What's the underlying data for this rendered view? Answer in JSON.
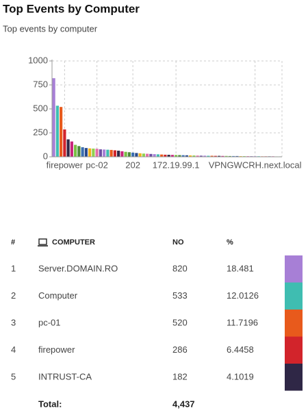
{
  "header": {
    "title": "Top Events by Computer",
    "subtitle": "Top events by computer"
  },
  "chart_data": {
    "type": "bar",
    "categories": [
      null,
      null,
      null,
      "firepower",
      null,
      null,
      null,
      null,
      null,
      null,
      null,
      null,
      "pc-02",
      null,
      null,
      null,
      null,
      null,
      null,
      null,
      null,
      null,
      "202",
      null,
      null,
      null,
      null,
      null,
      null,
      null,
      null,
      null,
      null,
      null,
      "172.19.99.1",
      null,
      null,
      null,
      null,
      null,
      null,
      null,
      null,
      null,
      null,
      null,
      null,
      null,
      null,
      null,
      null,
      null,
      null,
      null,
      null,
      null,
      "VPNGWCRH.next.local",
      null,
      null,
      null,
      null,
      null,
      null,
      null
    ],
    "values": [
      820,
      533,
      520,
      286,
      182,
      160,
      125,
      112,
      100,
      92,
      88,
      86,
      84,
      78,
      76,
      74,
      72,
      68,
      64,
      58,
      52,
      48,
      44,
      40,
      37,
      34,
      32,
      30,
      28,
      26,
      24,
      22,
      21,
      20,
      19,
      18,
      17,
      16,
      15,
      14,
      13,
      12,
      12,
      11,
      11,
      10,
      10,
      9,
      9,
      8,
      8,
      8,
      7,
      7,
      7,
      6,
      6,
      6,
      5,
      5,
      5,
      5,
      4,
      4
    ],
    "palette": [
      "#a77fd6",
      "#3fbdb1",
      "#e85a1c",
      "#d2242b",
      "#2f2746",
      "#c8267c",
      "#78bf44",
      "#4d8a3a",
      "#3b6fb0",
      "#2a4a8c",
      "#f0b21c",
      "#8fd14f",
      "#e46fa8",
      "#6d4fa3"
    ],
    "ylim": [
      0,
      1000
    ],
    "yticks": [
      0,
      250,
      500,
      750,
      1000
    ],
    "grid": true
  },
  "table": {
    "columns": [
      "#",
      "COMPUTER",
      "NO",
      "%"
    ],
    "rows": [
      {
        "rank": 1,
        "computer": "Server.DOMAIN.RO",
        "no": 820,
        "percent": 18.481,
        "color": "#a77fd6"
      },
      {
        "rank": 2,
        "computer": "Computer",
        "no": 533,
        "percent": 12.0126,
        "color": "#3fbdb1"
      },
      {
        "rank": 3,
        "computer": "pc-01",
        "no": 520,
        "percent": 11.7196,
        "color": "#e85a1c"
      },
      {
        "rank": 4,
        "computer": "firepower",
        "no": 286,
        "percent": 6.4458,
        "color": "#d2242b"
      },
      {
        "rank": 5,
        "computer": "INTRUST-CA",
        "no": 182,
        "percent": 4.1019,
        "color": "#2f2746"
      }
    ],
    "total": {
      "label": "Total:",
      "value": "4,437"
    }
  }
}
